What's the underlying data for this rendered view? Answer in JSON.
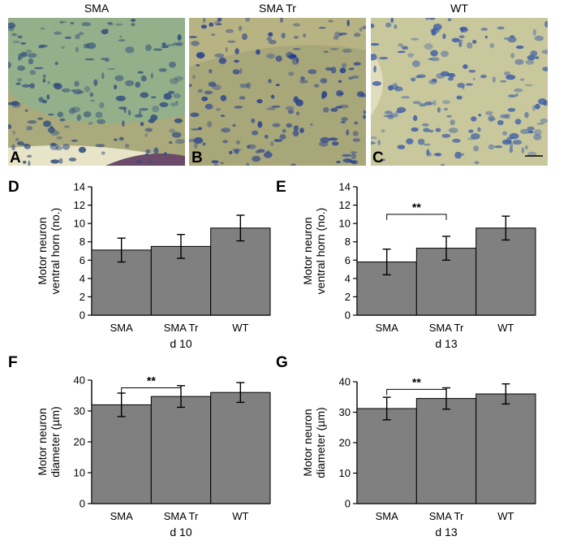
{
  "micrographs": [
    {
      "title": "SMA",
      "panel": "A",
      "bg": "#93b08a",
      "cell": "#33507e",
      "edge": "#b5a878"
    },
    {
      "title": "SMA Tr",
      "panel": "B",
      "bg": "#a8a779",
      "cell": "#263f8e",
      "edge": "#c7bf8d"
    },
    {
      "title": "WT",
      "panel": "C",
      "bg": "#c8c89c",
      "cell": "#3e5ea7",
      "edge": "#d9d6b4"
    }
  ],
  "chart_data": [
    {
      "panel": "D",
      "type": "bar",
      "categories": [
        "SMA",
        "SMA Tr",
        "WT"
      ],
      "values": [
        7.1,
        7.5,
        9.5
      ],
      "errors": [
        1.3,
        1.3,
        1.4
      ],
      "ylabel": [
        "Motor neuron",
        "ventral horn (no.)"
      ],
      "xlabel": "d 10",
      "ylim": [
        0,
        14
      ],
      "yticks": [
        0,
        2,
        4,
        6,
        8,
        10,
        12,
        14
      ],
      "significance": null,
      "bar_color": "#808080"
    },
    {
      "panel": "E",
      "type": "bar",
      "categories": [
        "SMA",
        "SMA Tr",
        "WT"
      ],
      "values": [
        5.8,
        7.3,
        9.5
      ],
      "errors": [
        1.4,
        1.3,
        1.3
      ],
      "ylabel": [
        "Motor neuron",
        "ventral horn (no.)"
      ],
      "xlabel": "d 13",
      "ylim": [
        0,
        14
      ],
      "yticks": [
        0,
        2,
        4,
        6,
        8,
        10,
        12,
        14
      ],
      "significance": {
        "label": "**",
        "from": 0,
        "to": 1,
        "y": 11
      },
      "bar_color": "#808080"
    },
    {
      "panel": "F",
      "type": "bar",
      "categories": [
        "SMA",
        "SMA Tr",
        "WT"
      ],
      "values": [
        32,
        34.7,
        36
      ],
      "errors": [
        3.8,
        3.5,
        3.2
      ],
      "ylabel": [
        "Motor neuron",
        "diameter (µm)"
      ],
      "xlabel": "d 10",
      "ylim": [
        0,
        40
      ],
      "yticks": [
        0,
        10,
        20,
        30,
        40
      ],
      "significance": {
        "label": "**",
        "from": 0,
        "to": 1,
        "y": 37.5
      },
      "bar_color": "#808080"
    },
    {
      "panel": "G",
      "type": "bar",
      "categories": [
        "SMA",
        "SMA Tr",
        "WT"
      ],
      "values": [
        31.2,
        34.5,
        36
      ],
      "errors": [
        3.7,
        3.5,
        3.3
      ],
      "ylabel": [
        "Motor neuron",
        "diameter (µm)"
      ],
      "xlabel": "d 13",
      "ylim": [
        0,
        40
      ],
      "yticks": [
        0,
        10,
        20,
        30,
        40
      ],
      "significance": {
        "label": "**",
        "from": 0,
        "to": 1,
        "y": 37.5
      },
      "bar_color": "#808080"
    }
  ]
}
